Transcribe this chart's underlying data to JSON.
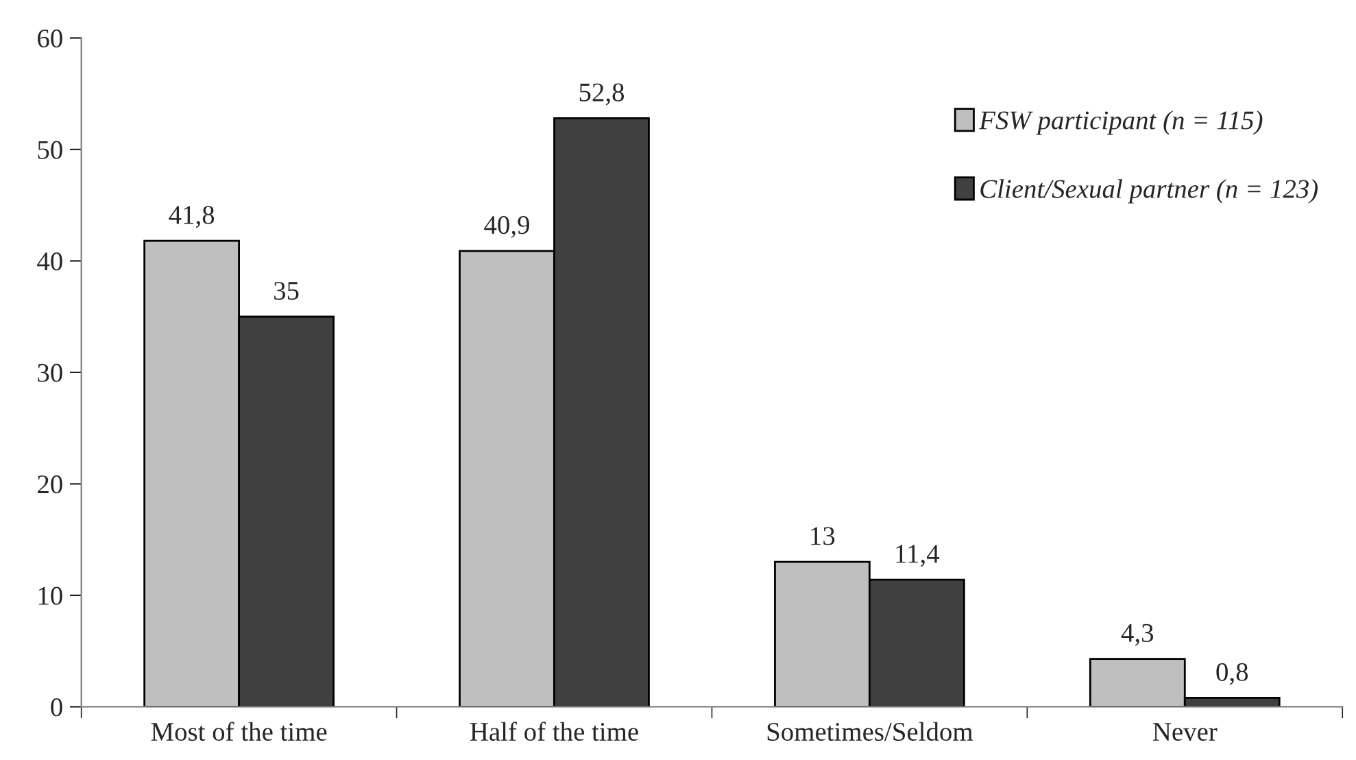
{
  "chart_data": {
    "type": "bar",
    "categories": [
      "Most of the time",
      "Half of the time",
      "Sometimes/Seldom",
      "Never"
    ],
    "series": [
      {
        "name": "FSW participant (n = 115)",
        "color": "#bfbfbf",
        "values": [
          41.8,
          40.9,
          13,
          4.3
        ],
        "value_labels": [
          "41,8",
          "40,9",
          "13",
          "4,3"
        ]
      },
      {
        "name": "Client/Sexual partner (n = 123)",
        "color": "#404040",
        "values": [
          35,
          52.8,
          11.4,
          0.8
        ],
        "value_labels": [
          "35",
          "52,8",
          "11,4",
          "0,8"
        ]
      }
    ],
    "ylim": [
      0,
      60
    ],
    "yticks": [
      0,
      10,
      20,
      30,
      40,
      50,
      60
    ],
    "grid": false,
    "legend": "top right"
  }
}
